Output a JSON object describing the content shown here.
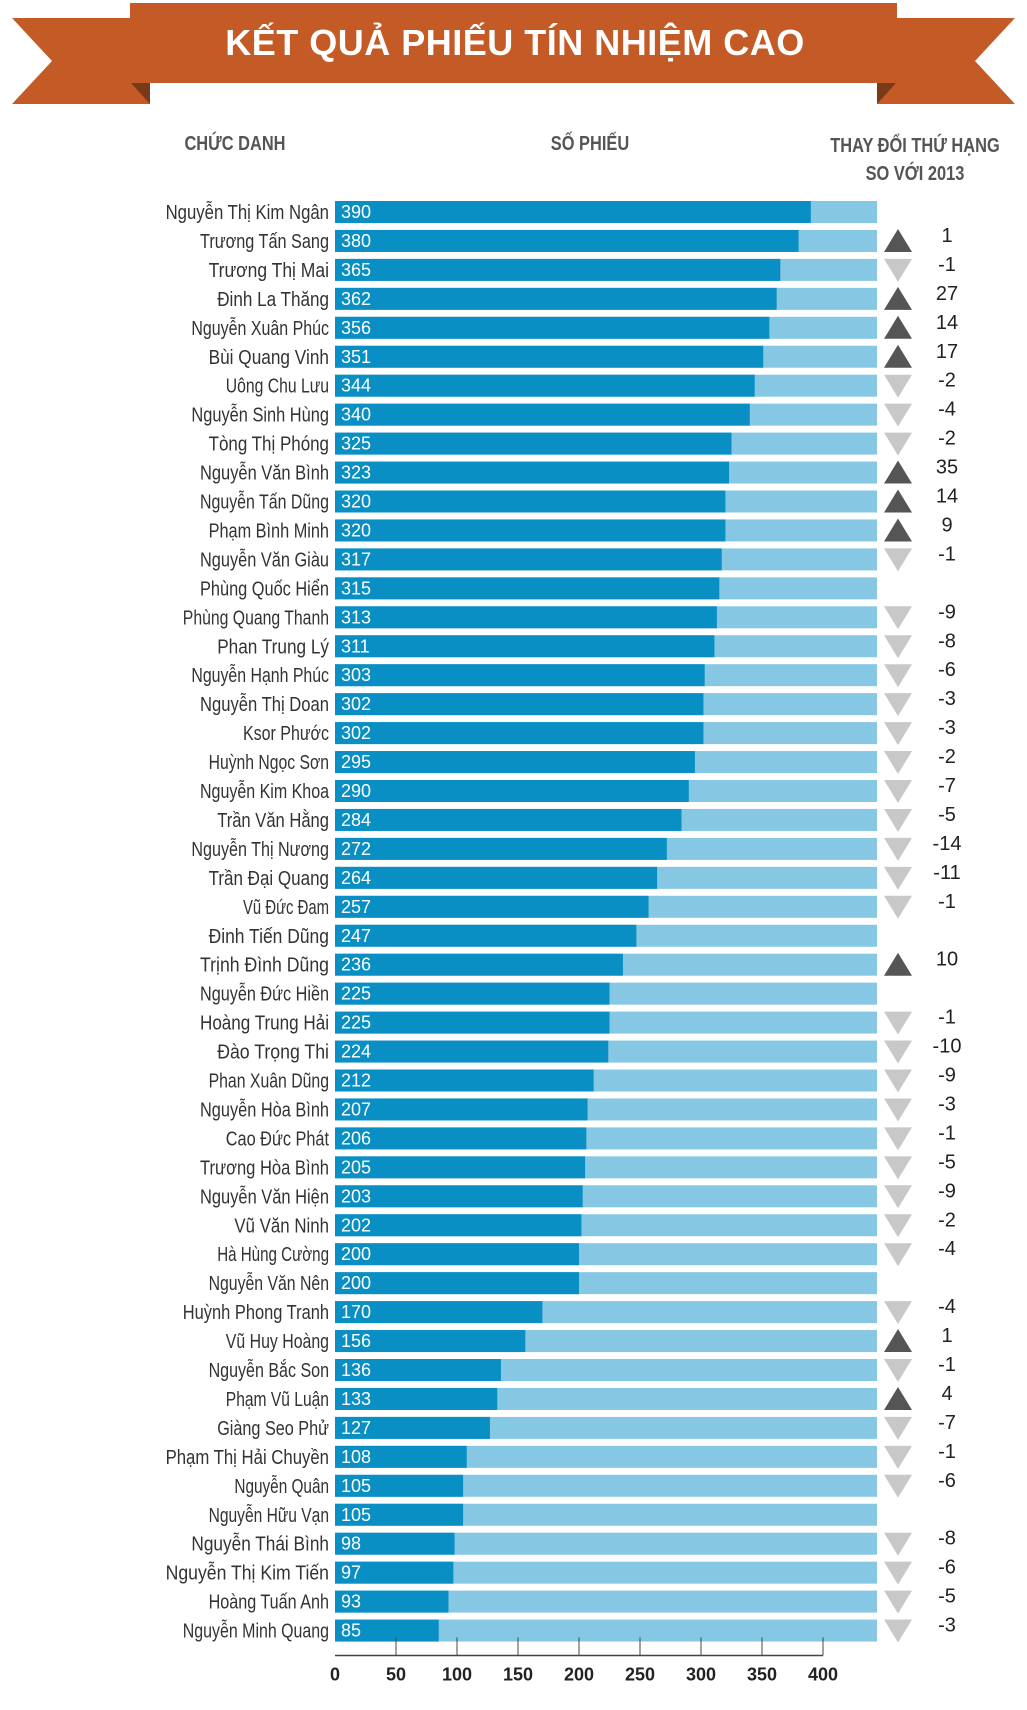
{
  "title": "KẾT QUẢ PHIẾU TÍN NHIỆM CAO",
  "headers": {
    "name": "CHỨC DANH",
    "votes": "SỐ PHIẾU",
    "change_line1": "THAY ĐỔI THỨ HẠNG",
    "change_line2": "SO VỚI 2013"
  },
  "colors": {
    "banner": "#c45a25",
    "banner_dark": "#7a3a18",
    "bar": "#0a8fc4",
    "bar_bg": "#86c7e3",
    "up": "#555555",
    "down": "#c8c8c8"
  },
  "chart_data": {
    "type": "bar",
    "orientation": "horizontal",
    "title": "KẾT QUẢ PHIẾU TÍN NHIỆM CAO",
    "xlim": [
      0,
      400
    ],
    "xticks": [
      "0",
      "50",
      "100",
      "150",
      "200",
      "250",
      "300",
      "350",
      "400"
    ],
    "rows": [
      {
        "name": "Nguyễn Thị Kim Ngân",
        "votes": 390,
        "dir": "",
        "change": ""
      },
      {
        "name": "Trương Tấn Sang",
        "votes": 380,
        "dir": "up",
        "change": "1"
      },
      {
        "name": "Trương Thị Mai",
        "votes": 365,
        "dir": "down",
        "change": "-1"
      },
      {
        "name": "Đinh La Thăng",
        "votes": 362,
        "dir": "up",
        "change": "27"
      },
      {
        "name": "Nguyễn Xuân Phúc",
        "votes": 356,
        "dir": "up",
        "change": "14"
      },
      {
        "name": "Bùi Quang Vinh",
        "votes": 351,
        "dir": "up",
        "change": "17"
      },
      {
        "name": "Uông Chu Lưu",
        "votes": 344,
        "dir": "down",
        "change": "-2"
      },
      {
        "name": "Nguyễn Sinh Hùng",
        "votes": 340,
        "dir": "down",
        "change": "-4"
      },
      {
        "name": "Tòng Thị Phóng",
        "votes": 325,
        "dir": "down",
        "change": "-2"
      },
      {
        "name": "Nguyễn Văn Bình",
        "votes": 323,
        "dir": "up",
        "change": "35"
      },
      {
        "name": "Nguyễn Tấn Dũng",
        "votes": 320,
        "dir": "up",
        "change": "14"
      },
      {
        "name": "Phạm Bình Minh",
        "votes": 320,
        "dir": "up",
        "change": "9"
      },
      {
        "name": "Nguyễn Văn Giàu",
        "votes": 317,
        "dir": "down",
        "change": "-1"
      },
      {
        "name": "Phùng Quốc Hiển",
        "votes": 315,
        "dir": "",
        "change": ""
      },
      {
        "name": "Phùng Quang Thanh",
        "votes": 313,
        "dir": "down",
        "change": "-9"
      },
      {
        "name": "Phan Trung Lý",
        "votes": 311,
        "dir": "down",
        "change": "-8"
      },
      {
        "name": "Nguyễn Hạnh Phúc",
        "votes": 303,
        "dir": "down",
        "change": "-6"
      },
      {
        "name": "Nguyễn Thị Doan",
        "votes": 302,
        "dir": "down",
        "change": "-3"
      },
      {
        "name": "Ksor Phước",
        "votes": 302,
        "dir": "down",
        "change": "-3"
      },
      {
        "name": "Huỳnh Ngọc Sơn",
        "votes": 295,
        "dir": "down",
        "change": "-2"
      },
      {
        "name": "Nguyễn Kim Khoa",
        "votes": 290,
        "dir": "down",
        "change": "-7"
      },
      {
        "name": "Trần Văn Hằng",
        "votes": 284,
        "dir": "down",
        "change": "-5"
      },
      {
        "name": "Nguyễn Thị Nương",
        "votes": 272,
        "dir": "down",
        "change": "-14"
      },
      {
        "name": "Trần Đại Quang",
        "votes": 264,
        "dir": "down",
        "change": "-11"
      },
      {
        "name": "Vũ Đức Đam",
        "votes": 257,
        "dir": "down",
        "change": "-1"
      },
      {
        "name": "Đinh Tiến Dũng",
        "votes": 247,
        "dir": "",
        "change": ""
      },
      {
        "name": "Trịnh Đình Dũng",
        "votes": 236,
        "dir": "up",
        "change": "10"
      },
      {
        "name": "Nguyễn Đức Hiền",
        "votes": 225,
        "dir": "",
        "change": ""
      },
      {
        "name": "Hoàng Trung Hải",
        "votes": 225,
        "dir": "down",
        "change": "-1"
      },
      {
        "name": "Đào Trọng Thi",
        "votes": 224,
        "dir": "down",
        "change": "-10"
      },
      {
        "name": "Phan Xuân Dũng",
        "votes": 212,
        "dir": "down",
        "change": "-9"
      },
      {
        "name": "Nguyễn Hòa Bình",
        "votes": 207,
        "dir": "down",
        "change": "-3"
      },
      {
        "name": "Cao Đức Phát",
        "votes": 206,
        "dir": "down",
        "change": "-1"
      },
      {
        "name": "Trương Hòa Bình",
        "votes": 205,
        "dir": "down",
        "change": "-5"
      },
      {
        "name": "Nguyễn Văn Hiện",
        "votes": 203,
        "dir": "down",
        "change": "-9"
      },
      {
        "name": "Vũ Văn Ninh",
        "votes": 202,
        "dir": "down",
        "change": "-2"
      },
      {
        "name": "Hà Hùng Cường",
        "votes": 200,
        "dir": "down",
        "change": "-4"
      },
      {
        "name": "Nguyễn Văn Nên",
        "votes": 200,
        "dir": "",
        "change": ""
      },
      {
        "name": "Huỳnh Phong Tranh",
        "votes": 170,
        "dir": "down",
        "change": "-4"
      },
      {
        "name": "Vũ Huy Hoàng",
        "votes": 156,
        "dir": "up",
        "change": "1"
      },
      {
        "name": "Nguyễn Bắc Son",
        "votes": 136,
        "dir": "down",
        "change": "-1"
      },
      {
        "name": "Phạm Vũ Luận",
        "votes": 133,
        "dir": "up",
        "change": "4"
      },
      {
        "name": "Giàng Seo Phử",
        "votes": 127,
        "dir": "down",
        "change": "-7"
      },
      {
        "name": "Phạm Thị Hải Chuyền",
        "votes": 108,
        "dir": "down",
        "change": "-1"
      },
      {
        "name": "Nguyễn Quân",
        "votes": 105,
        "dir": "down",
        "change": "-6"
      },
      {
        "name": "Nguyễn Hữu Vạn",
        "votes": 105,
        "dir": "",
        "change": ""
      },
      {
        "name": "Nguyễn Thái Bình",
        "votes": 98,
        "dir": "down",
        "change": "-8"
      },
      {
        "name": "Nguyễn Thị Kim Tiến",
        "votes": 97,
        "dir": "down",
        "change": "-6"
      },
      {
        "name": "Hoàng Tuấn Anh",
        "votes": 93,
        "dir": "down",
        "change": "-5"
      },
      {
        "name": "Nguyễn Minh Quang",
        "votes": 85,
        "dir": "down",
        "change": "-3"
      }
    ]
  }
}
